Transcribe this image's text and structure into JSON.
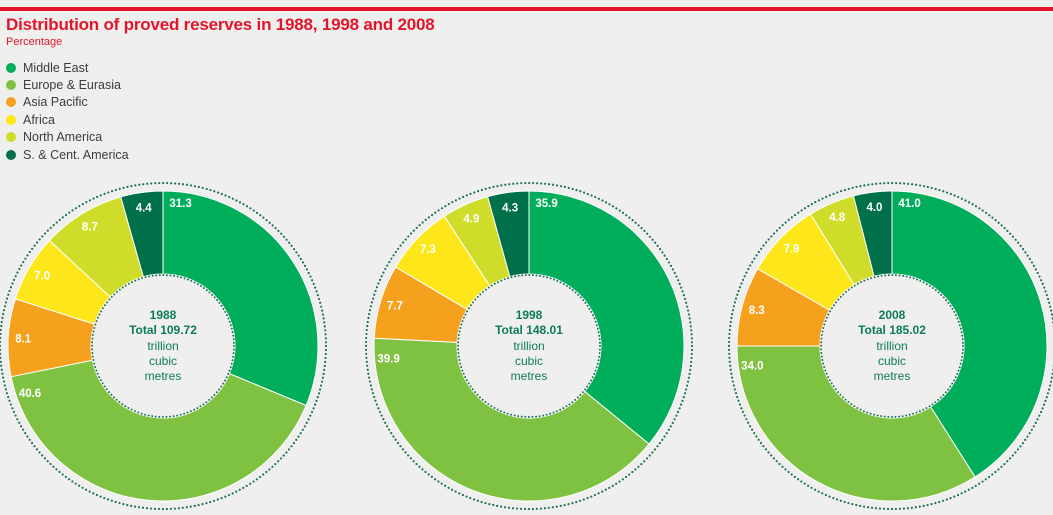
{
  "header": {
    "title": "Distribution of proved reserves in 1988, 1998 and 2008",
    "subtitle": "Percentage"
  },
  "legend": [
    {
      "label": "Middle East",
      "color": "#00ad5b"
    },
    {
      "label": "Europe & Eurasia",
      "color": "#7fc241"
    },
    {
      "label": "Asia Pacific",
      "color": "#f6a11e"
    },
    {
      "label": "Africa",
      "color": "#fde619"
    },
    {
      "label": "North America",
      "color": "#cfdd2a"
    },
    {
      "label": "S. & Cent. America",
      "color": "#00704a"
    }
  ],
  "chart_data": [
    {
      "type": "pie",
      "categories": [
        "Middle East",
        "Europe & Eurasia",
        "Asia Pacific",
        "Africa",
        "North America",
        "S. & Cent. America"
      ],
      "values": [
        31.3,
        40.6,
        8.1,
        7.0,
        8.7,
        4.4
      ],
      "center_year": "1988",
      "center_total": "Total 109.72",
      "center_unit": [
        "trillion",
        "cubic",
        "metres"
      ]
    },
    {
      "type": "pie",
      "categories": [
        "Middle East",
        "Europe & Eurasia",
        "Asia Pacific",
        "Africa",
        "North America",
        "S. & Cent. America"
      ],
      "values": [
        35.9,
        39.9,
        7.7,
        7.3,
        4.9,
        4.3
      ],
      "center_year": "1998",
      "center_total": "Total 148.01",
      "center_unit": [
        "trillion",
        "cubic",
        "metres"
      ]
    },
    {
      "type": "pie",
      "categories": [
        "Middle East",
        "Europe & Eurasia",
        "Asia Pacific",
        "Africa",
        "North America",
        "S. & Cent. America"
      ],
      "values": [
        41.0,
        34.0,
        8.3,
        7.9,
        4.8,
        4.0
      ],
      "center_year": "2008",
      "center_total": "Total 185.02",
      "center_unit": [
        "trillion",
        "cubic",
        "metres"
      ]
    }
  ]
}
